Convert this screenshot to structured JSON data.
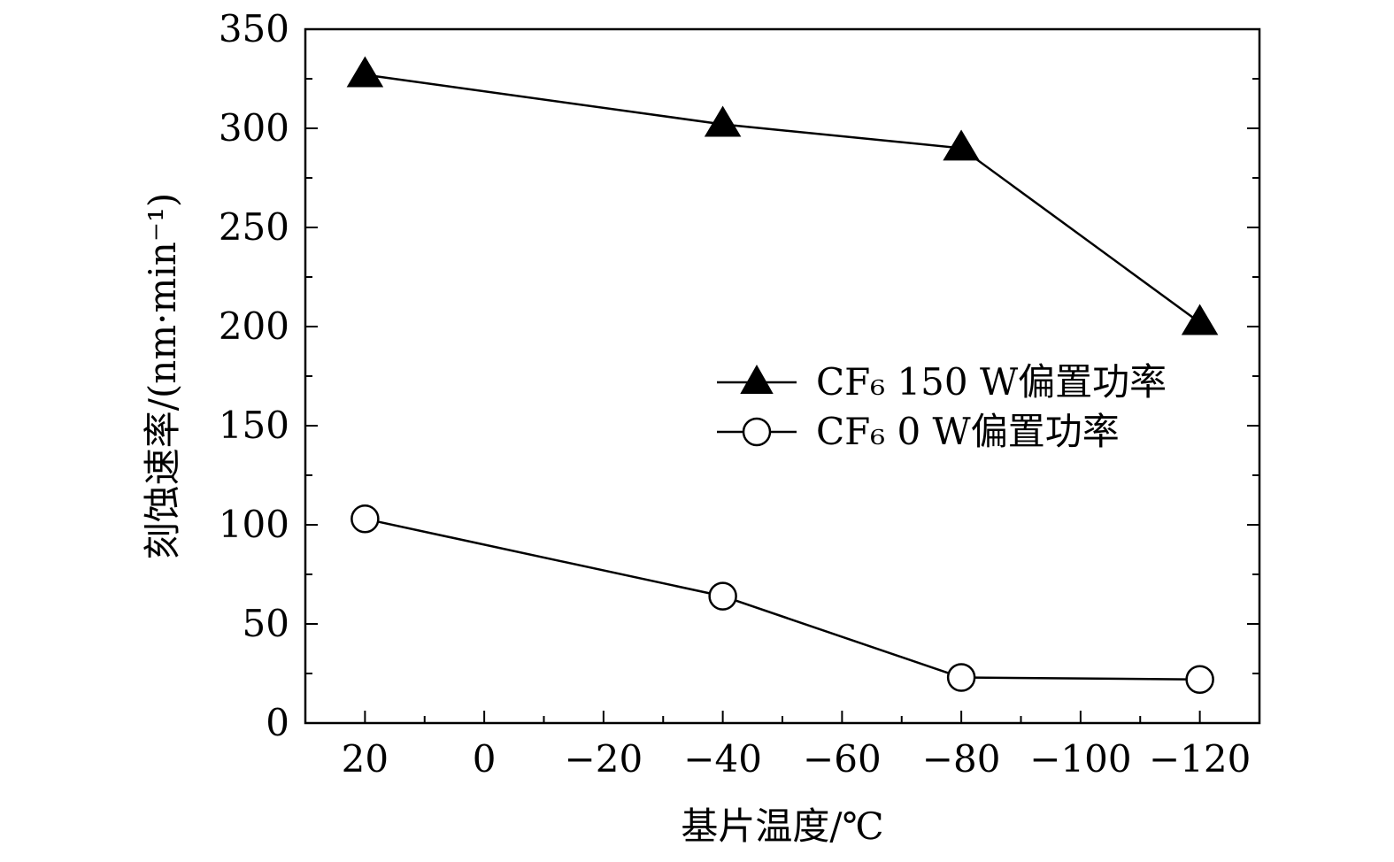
{
  "chart_data": {
    "type": "line",
    "title": "",
    "xlabel": "基片温度/℃",
    "ylabel": "刻蚀速率/(nm·min⁻¹)",
    "x_direction": "decreasing",
    "xlim": [
      30,
      -130
    ],
    "ylim": [
      0,
      350
    ],
    "x_ticks": [
      20,
      0,
      -20,
      -40,
      -60,
      -80,
      -100,
      -120
    ],
    "x_tick_labels": [
      "20",
      "0",
      "−20",
      "−40",
      "−60",
      "−80",
      "−100",
      "−120"
    ],
    "y_ticks": [
      0,
      50,
      100,
      150,
      200,
      250,
      300,
      350
    ],
    "y_tick_labels": [
      "0",
      "50",
      "100",
      "150",
      "200",
      "250",
      "300",
      "350"
    ],
    "grid": false,
    "legend_position": "center-right",
    "series": [
      {
        "name": "CF₆ 150 W偏置功率",
        "marker": "filled-triangle",
        "color": "#000000",
        "x": [
          20,
          -40,
          -80,
          -120
        ],
        "y": [
          327,
          302,
          290,
          202
        ]
      },
      {
        "name": "CF₆ 0 W偏置功率",
        "marker": "open-circle",
        "color": "#000000",
        "x": [
          20,
          -40,
          -80,
          -120
        ],
        "y": [
          103,
          64,
          23,
          22
        ]
      }
    ]
  }
}
